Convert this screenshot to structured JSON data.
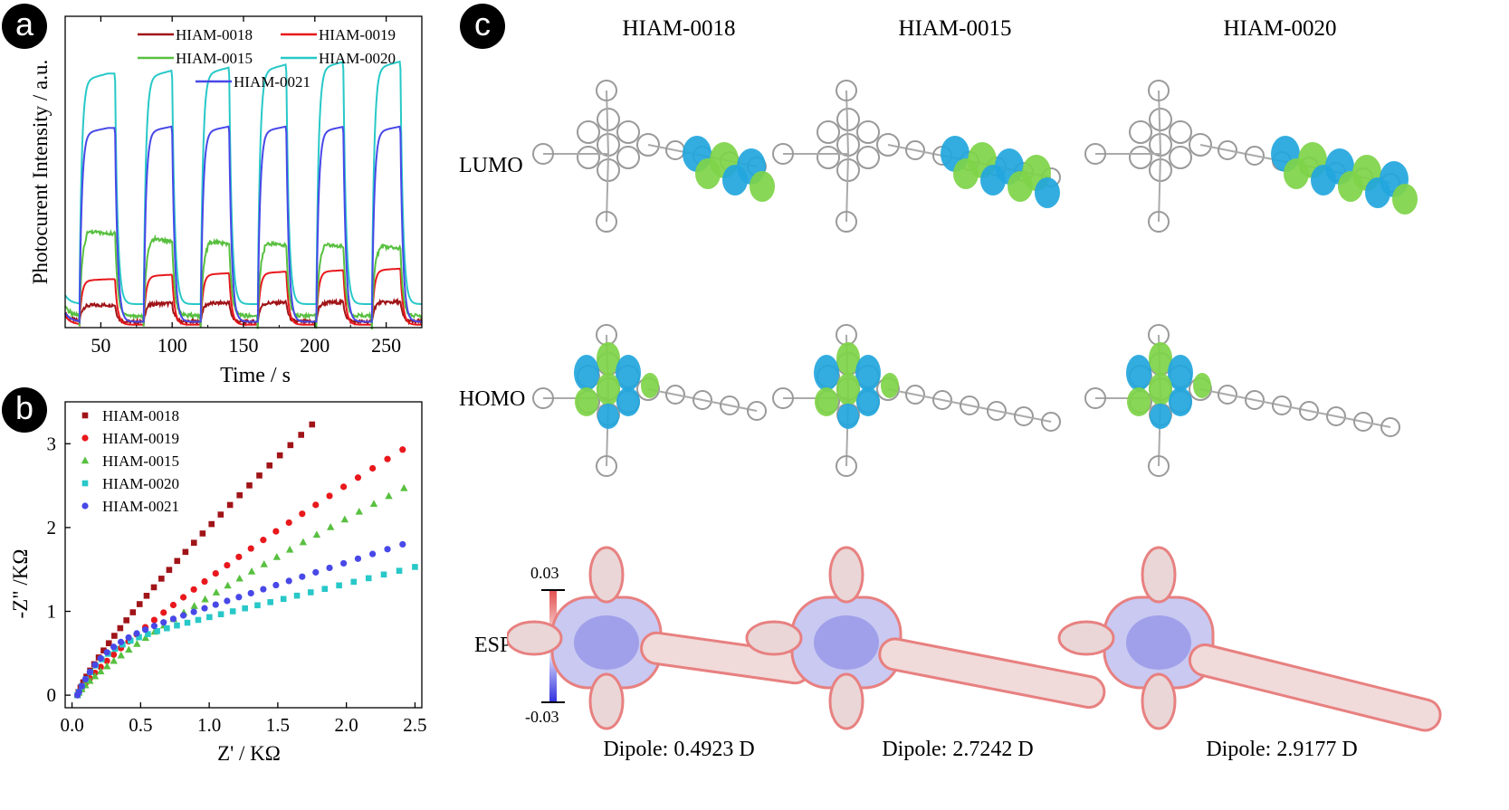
{
  "panels": {
    "a": "a",
    "b": "b",
    "c": "c"
  },
  "chart_data": [
    {
      "type": "line",
      "panel": "a",
      "xlabel": "Time / s",
      "ylabel": "Photocurent  Intensity / a.u.",
      "xlim": [
        25,
        275
      ],
      "ylim": [
        0,
        1.06
      ],
      "xticks": [
        50,
        100,
        150,
        200,
        250
      ],
      "light_on": [
        35,
        80,
        120,
        160,
        201,
        240
      ],
      "light_off": [
        60,
        100,
        140,
        180,
        220,
        260
      ],
      "legend": "top-right",
      "series": [
        {
          "name": "HIAM-0018",
          "color": "#a01418",
          "dark": 0.02,
          "plateau": [
            0.075,
            0.08,
            0.082,
            0.083,
            0.084,
            0.085
          ]
        },
        {
          "name": "HIAM-0019",
          "color": "#e8181c",
          "dark": 0.01,
          "plateau": [
            0.16,
            0.175,
            0.18,
            0.185,
            0.19,
            0.195
          ]
        },
        {
          "name": "HIAM-0015",
          "color": "#58c040",
          "dark": 0.04,
          "plateau": [
            0.32,
            0.295,
            0.285,
            0.28,
            0.275,
            0.27
          ]
        },
        {
          "name": "HIAM-0020",
          "color": "#28c8c8",
          "dark": 0.08,
          "plateau": [
            0.84,
            0.85,
            0.86,
            0.87,
            0.88,
            0.88
          ]
        },
        {
          "name": "HIAM-0021",
          "color": "#4848e8",
          "dark": 0.02,
          "plateau": [
            0.66,
            0.665,
            0.665,
            0.665,
            0.665,
            0.665
          ]
        }
      ]
    },
    {
      "type": "scatter",
      "panel": "b",
      "xlabel": "Z' / KΩ",
      "ylabel": "-Z\" /KΩ",
      "xlim": [
        -0.05,
        2.55
      ],
      "ylim": [
        -0.15,
        3.5
      ],
      "xticks": [
        "0.0",
        "0.5",
        "1.0",
        "1.5",
        "2.0",
        "2.5"
      ],
      "yticks": [
        "0",
        "1",
        "2",
        "3"
      ],
      "legend": "top-left",
      "series": [
        {
          "name": "HIAM-0018",
          "marker": "square",
          "color": "#a01418",
          "end_x": 1.75,
          "end_y": 3.23
        },
        {
          "name": "HIAM-0019",
          "marker": "circle",
          "color": "#e8181c",
          "end_x": 2.41,
          "end_y": 2.93
        },
        {
          "name": "HIAM-0015",
          "marker": "triangle",
          "color": "#58c040",
          "end_x": 2.42,
          "end_y": 2.47
        },
        {
          "name": "HIAM-0020",
          "marker": "square",
          "color": "#28c8c8",
          "end_x": 2.5,
          "end_y": 1.53
        },
        {
          "name": "HIAM-0021",
          "marker": "circle",
          "color": "#4848e8",
          "end_x": 2.41,
          "end_y": 1.8
        }
      ]
    }
  ],
  "panel_c": {
    "columns": [
      "HIAM-0018",
      "HIAM-0015",
      "HIAM-0020"
    ],
    "rows": [
      "LUMO",
      "HOMO",
      "ESP"
    ],
    "colorbar": {
      "max": "0.03",
      "min": "-0.03"
    },
    "dipoles": [
      "Dipole: 0.4923 D",
      "Dipole: 2.7242 D",
      "Dipole: 2.9177 D"
    ],
    "colors": {
      "orbital_blue": "#22a6dd",
      "orbital_green": "#7ed448",
      "esp_red": "#e88080",
      "esp_blue": "#6f6fe0"
    }
  }
}
